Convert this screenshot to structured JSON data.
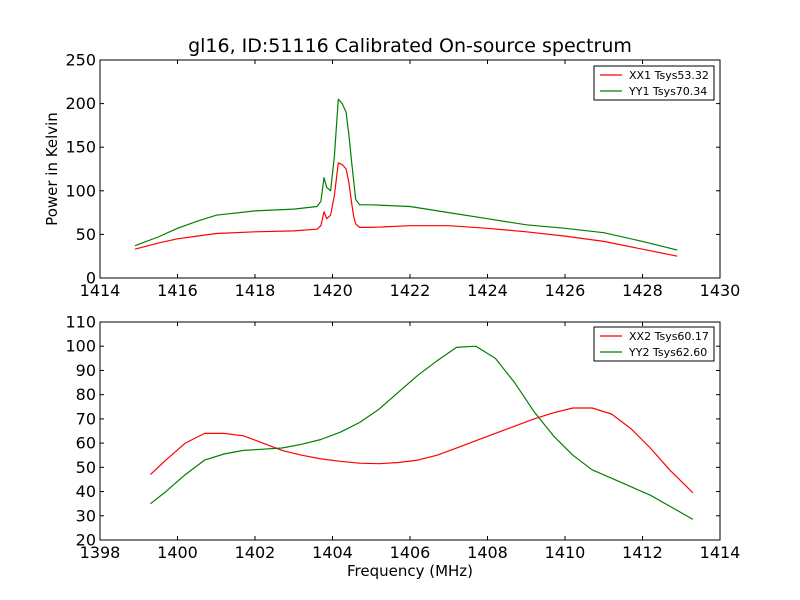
{
  "figure": {
    "title": "gl16, ID:51116 Calibrated On-source spectrum"
  },
  "chart_data": [
    {
      "type": "line",
      "title": "gl16, ID:51116 Calibrated On-source spectrum",
      "xlabel": "",
      "ylabel": "Power in Kelvin",
      "xlim": [
        1414,
        1430
      ],
      "ylim": [
        0,
        250
      ],
      "xticks": [
        "1414",
        "1416",
        "1418",
        "1420",
        "1422",
        "1424",
        "1426",
        "1428",
        "1430"
      ],
      "yticks": [
        "0",
        "50",
        "100",
        "150",
        "200",
        "250"
      ],
      "grid": false,
      "legend": "top-right",
      "series": [
        {
          "name": "XX1 Tsys53.32",
          "color": "#ff0000",
          "x": [
            1414.9,
            1415.5,
            1416,
            1416.5,
            1417,
            1418,
            1419,
            1419.6,
            1419.7,
            1419.78,
            1419.85,
            1419.95,
            1420.05,
            1420.15,
            1420.25,
            1420.35,
            1420.42,
            1420.5,
            1420.55,
            1420.6,
            1420.7,
            1421,
            1422,
            1423,
            1424,
            1425,
            1426,
            1427,
            1428,
            1428.9
          ],
          "y": [
            33,
            40,
            45,
            48,
            51,
            53,
            54,
            56,
            60,
            76,
            68,
            72,
            95,
            132,
            130,
            125,
            110,
            84,
            70,
            62,
            58,
            58,
            60,
            60,
            57,
            53,
            48,
            42,
            33,
            25
          ]
        },
        {
          "name": "YY1 Tsys70.34",
          "color": "#008000",
          "x": [
            1414.9,
            1415.5,
            1416,
            1416.5,
            1417,
            1418,
            1419,
            1419.6,
            1419.7,
            1419.78,
            1419.85,
            1419.95,
            1420.05,
            1420.15,
            1420.25,
            1420.35,
            1420.42,
            1420.5,
            1420.55,
            1420.6,
            1420.7,
            1421,
            1422,
            1423,
            1424,
            1425,
            1426,
            1427,
            1428,
            1428.9
          ],
          "y": [
            37,
            47,
            57,
            65,
            72,
            77,
            79,
            82,
            88,
            115,
            104,
            100,
            140,
            205,
            200,
            190,
            165,
            130,
            110,
            90,
            84,
            84,
            82,
            75,
            68,
            61,
            57,
            52,
            42,
            32
          ]
        }
      ]
    },
    {
      "type": "line",
      "title": "",
      "xlabel": "Frequency (MHz)",
      "ylabel": "",
      "xlim": [
        1398,
        1414
      ],
      "ylim": [
        20,
        110
      ],
      "xticks": [
        "1398",
        "1400",
        "1402",
        "1404",
        "1406",
        "1408",
        "1410",
        "1412",
        "1414"
      ],
      "yticks": [
        "20",
        "30",
        "40",
        "50",
        "60",
        "70",
        "80",
        "90",
        "100",
        "110"
      ],
      "grid": false,
      "legend": "top-right",
      "series": [
        {
          "name": "XX2 Tsys60.17",
          "color": "#ff0000",
          "x": [
            1399.3,
            1399.7,
            1400.2,
            1400.7,
            1401.2,
            1401.7,
            1402.2,
            1402.7,
            1403.2,
            1403.7,
            1404.2,
            1404.7,
            1405.2,
            1405.7,
            1406.2,
            1406.7,
            1407.2,
            1407.7,
            1408.2,
            1408.7,
            1409.2,
            1409.7,
            1410.2,
            1410.7,
            1411.2,
            1411.7,
            1412.2,
            1412.7,
            1413.3
          ],
          "y": [
            47,
            53,
            60,
            64,
            64,
            63,
            60,
            57,
            55,
            53.5,
            52.5,
            51.7,
            51.5,
            52,
            53,
            55,
            58,
            61,
            64,
            67,
            70,
            72.5,
            74.5,
            74.5,
            72,
            66,
            58,
            49,
            39.5
          ]
        },
        {
          "name": "YY2 Tsys62.60",
          "color": "#008000",
          "x": [
            1399.3,
            1399.7,
            1400.2,
            1400.7,
            1401.2,
            1401.7,
            1402.2,
            1402.7,
            1403.2,
            1403.7,
            1404.2,
            1404.7,
            1405.2,
            1405.7,
            1406.2,
            1406.7,
            1407.2,
            1407.7,
            1408.2,
            1408.7,
            1409.2,
            1409.7,
            1410.2,
            1410.7,
            1411.2,
            1411.7,
            1412.2,
            1412.7,
            1413.3
          ],
          "y": [
            35,
            40,
            47,
            53,
            55.5,
            57,
            57.5,
            58,
            59.5,
            61.5,
            64.5,
            68.5,
            74,
            81,
            88,
            94,
            99.5,
            100,
            95,
            85,
            73,
            63,
            55,
            49,
            45.5,
            42,
            38.5,
            34,
            28.5
          ]
        }
      ]
    }
  ]
}
